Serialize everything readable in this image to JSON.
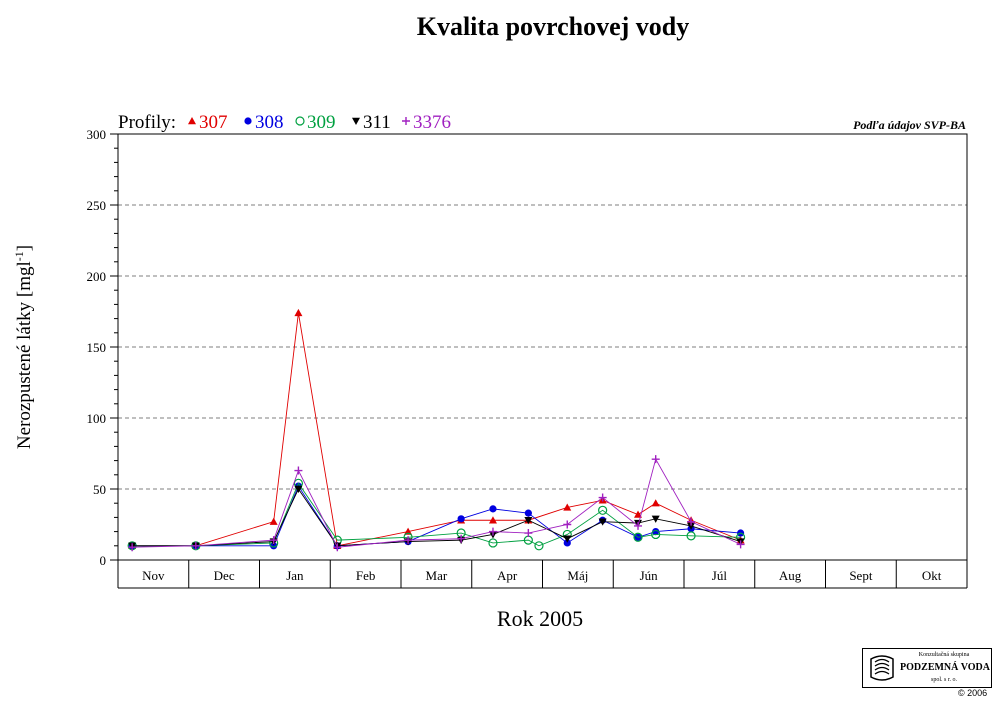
{
  "chart_data": {
    "type": "line",
    "title": "Kvalita povrchovej vody",
    "xlabel": "Rok 2005",
    "ylabel": "Nerozpustené látky [mgl",
    "ylabel_sup": "-1",
    "ylabel_end": "]",
    "source_note": "Podľa údajov SVP-BA",
    "legend_prefix": "Profily:",
    "legend_placement": "top-left",
    "grid": true,
    "ylim": [
      0,
      300
    ],
    "xlim": [
      0,
      12
    ],
    "yticks": [
      "0",
      "50",
      "100",
      "150",
      "200",
      "250",
      "300"
    ],
    "categories": [
      "Nov",
      "Dec",
      "Jan",
      "Feb",
      "Mar",
      "Apr",
      "Máj",
      "Jún",
      "Júl",
      "Aug",
      "Sept",
      "Okt"
    ],
    "series": [
      {
        "name": "307",
        "color": "#e00000",
        "marker": "triangle-up",
        "points": [
          [
            0.2,
            10
          ],
          [
            1.1,
            10
          ],
          [
            2.2,
            27
          ],
          [
            2.55,
            174
          ],
          [
            3.1,
            10
          ],
          [
            4.1,
            20
          ],
          [
            4.85,
            28
          ],
          [
            5.3,
            28
          ],
          [
            5.8,
            28
          ],
          [
            6.35,
            37
          ],
          [
            6.85,
            42
          ],
          [
            7.35,
            32
          ],
          [
            7.6,
            40
          ],
          [
            8.1,
            28
          ],
          [
            8.8,
            14
          ]
        ]
      },
      {
        "name": "308",
        "color": "#0000e0",
        "marker": "circle-filled",
        "points": [
          [
            0.2,
            10
          ],
          [
            1.1,
            10
          ],
          [
            2.2,
            10
          ],
          [
            2.55,
            52
          ],
          [
            3.1,
            10
          ],
          [
            4.1,
            13
          ],
          [
            4.85,
            29
          ],
          [
            5.3,
            36
          ],
          [
            5.8,
            33
          ],
          [
            6.35,
            12
          ],
          [
            6.85,
            28
          ],
          [
            7.35,
            16
          ],
          [
            7.6,
            20
          ],
          [
            8.1,
            22
          ],
          [
            8.8,
            19
          ]
        ]
      },
      {
        "name": "309",
        "color": "#00a040",
        "marker": "circle-open",
        "points": [
          [
            0.2,
            10
          ],
          [
            1.1,
            10
          ],
          [
            2.2,
            12
          ],
          [
            2.55,
            54
          ],
          [
            3.1,
            14
          ],
          [
            4.1,
            16
          ],
          [
            4.85,
            19
          ],
          [
            5.3,
            12
          ],
          [
            5.8,
            14
          ],
          [
            5.95,
            10
          ],
          [
            6.35,
            18
          ],
          [
            6.85,
            35
          ],
          [
            7.35,
            16
          ],
          [
            7.6,
            18
          ],
          [
            8.1,
            17
          ],
          [
            8.8,
            16
          ]
        ]
      },
      {
        "name": "311",
        "color": "#000000",
        "marker": "triangle-down",
        "points": [
          [
            0.2,
            10
          ],
          [
            1.1,
            10
          ],
          [
            2.2,
            13
          ],
          [
            2.55,
            50
          ],
          [
            3.1,
            10
          ],
          [
            4.1,
            13
          ],
          [
            4.85,
            14
          ],
          [
            5.3,
            18
          ],
          [
            5.8,
            28
          ],
          [
            6.35,
            15
          ],
          [
            6.85,
            27
          ],
          [
            7.35,
            26
          ],
          [
            7.6,
            29
          ],
          [
            8.1,
            24
          ],
          [
            8.8,
            13
          ]
        ]
      },
      {
        "name": "3376",
        "color": "#a020c0",
        "marker": "plus",
        "points": [
          [
            0.2,
            9
          ],
          [
            1.1,
            10
          ],
          [
            2.2,
            14
          ],
          [
            2.55,
            63
          ],
          [
            3.1,
            9
          ],
          [
            4.1,
            14
          ],
          [
            4.85,
            15
          ],
          [
            5.3,
            20
          ],
          [
            5.8,
            19
          ],
          [
            6.35,
            25
          ],
          [
            6.85,
            44
          ],
          [
            7.35,
            24
          ],
          [
            7.6,
            71
          ],
          [
            8.1,
            27
          ],
          [
            8.8,
            11
          ]
        ]
      }
    ]
  },
  "logo": {
    "line1": "Konzultačná skupina",
    "line2": "PODZEMNÁ VODA",
    "line3": "spol. s r. o.",
    "copyright": "© 2006"
  }
}
